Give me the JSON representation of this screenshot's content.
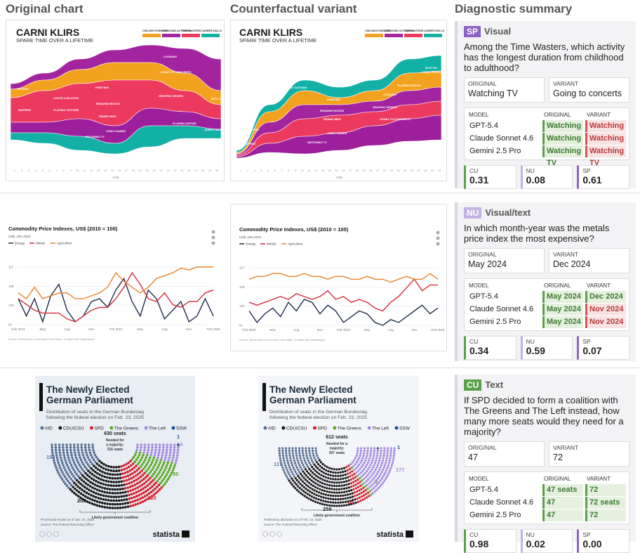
{
  "headers": [
    "Original chart",
    "Counterfactual variant",
    "Diagnostic summary"
  ],
  "rows": [
    {
      "original": {
        "type": "stream",
        "title": "CARNI KLIRS",
        "subtitle": "SPARE TIME OVER A LIFETIME",
        "legend": [
          "CHILDISH PURSUITS",
          "ENRICHING ACTIVITIES",
          "TIME WASTERS",
          "CAREER SKILLS"
        ],
        "labels": [
          "EXTRAS",
          "NAPPING",
          "LEGOS & BLOCKS",
          "PLAYING OUTSIDE",
          "PAINTING",
          "READING BOOKS",
          "RIDING BIKE",
          "VIDEO GAMES",
          "WATCHING TV",
          "COOKING",
          "GOING TO CONCERTS",
          "GRAPHIC DESIGN",
          "PLAYING GUITAR",
          "AUDIO PRODUCTION",
          "INTO VIZ"
        ],
        "xticks": [
          1,
          2,
          3,
          4,
          5,
          6,
          7,
          8,
          9,
          10,
          11,
          12,
          13,
          14,
          15,
          16,
          17,
          18,
          19,
          20,
          21,
          22,
          23,
          24,
          25,
          26,
          27,
          28,
          29,
          30
        ],
        "xlabel": "AGE"
      },
      "variant": {
        "type": "stream",
        "title": "CARNI KLIRS",
        "subtitle": "SPARE TIME OVER A LIFETIME",
        "legend": [
          "CHILDISH PURSUITS",
          "ENRICHING ACTIVITIES",
          "TIME WASTERS",
          "CAREER SKILLS"
        ],
        "labels": [
          "EXTRAS",
          "NAPPING",
          "LEGOS & BLOCKS",
          "PLAYING OUTSIDE",
          "PAINTING",
          "READING BOOKS",
          "RIDING BIKE",
          "VIDEO GAMES",
          "WATCHING TV",
          "COOKING",
          "GOING TO CONCERTS",
          "GRAPHIC DESIGN",
          "PLAYING GUITAR",
          "AUDIO PRODUCTION",
          "INTO VIZ"
        ],
        "xticks": [
          1,
          2,
          3,
          4,
          5,
          6,
          7,
          8,
          9,
          10,
          11,
          12,
          13,
          14,
          15,
          16,
          17,
          18,
          19,
          20,
          21,
          22,
          23,
          24,
          25,
          26,
          27,
          28,
          29,
          30
        ],
        "xlabel": "AGE"
      },
      "summary": {
        "badge": "SP",
        "kind": "Visual",
        "question": "Among the Time Wasters, which activity has the longest duration from childhood to adulthood?",
        "answers": [
          {
            "label": "ORIGINAL",
            "text": "Watching TV"
          },
          {
            "label": "VARIANT",
            "text": "Going to concerts"
          }
        ],
        "table": {
          "header": [
            "MODEL",
            "ORIGINAL",
            "VARIANT"
          ],
          "rows": [
            [
              "GPT-5.4",
              "Watching TV",
              "Watching TV"
            ],
            [
              "Claude Sonnet 4.6",
              "Watching TV",
              "Watching TV"
            ],
            [
              "Gemini 2.5 Pro",
              "Watching TV",
              "Watching TV"
            ]
          ],
          "correct": [
            [
              true,
              false
            ],
            [
              true,
              false
            ],
            [
              true,
              false
            ]
          ]
        },
        "metrics": [
          {
            "name": "CU",
            "value": "0.31"
          },
          {
            "name": "NU",
            "value": "0.08"
          },
          {
            "name": "SP",
            "value": "0.61"
          }
        ]
      }
    },
    {
      "original": {
        "type": "line",
        "title": "Commodity Price Indexes, US$ (2010 = 100)",
        "subtitle": "US$, 100=2010",
        "legend": [
          "Energy",
          "Metals",
          "Agriculture"
        ],
        "yticks": [
          "117",
          "108",
          "100",
          "91"
        ],
        "xticks": [
          "Feb 2023",
          "May",
          "Aug",
          "Nov",
          "Feb 2024",
          "May",
          "Aug",
          "Nov",
          "Feb 2025"
        ],
        "source": "Source: World Bank (Commodity Price Data) • Created with Datawrapper"
      },
      "variant": {
        "type": "line",
        "title": "Commodity Price Indexes, US$ (2010 = 100)",
        "subtitle": "US$, 100=2010",
        "legend": [
          "Energy",
          "Metals",
          "Agriculture"
        ],
        "yticks": [
          "117",
          "108",
          "100",
          "91"
        ],
        "xticks": [
          "Feb 2023",
          "May",
          "Aug",
          "Nov",
          "Feb 2024",
          "May",
          "Aug",
          "Nov",
          "Feb 2025"
        ],
        "source": "Source: World Bank (Commodity Price Data) • Created with Datawrapper"
      },
      "summary": {
        "badge": "NU",
        "kind": "Visual/text",
        "question": "In which month-year was the metals price index the most expensive?",
        "answers": [
          {
            "label": "ORIGINAL",
            "text": "May 2024"
          },
          {
            "label": "VARIANT",
            "text": "Dec 2024"
          }
        ],
        "table": {
          "header": [
            "MODEL",
            "ORIGINAL",
            "VARIANT"
          ],
          "rows": [
            [
              "GPT-5.4",
              "May 2024",
              "Dec 2024"
            ],
            [
              "Claude Sonnet 4.6",
              "May 2024",
              "Nov 2024"
            ],
            [
              "Gemini 2.5 Pro",
              "May 2024",
              "Nov 2024"
            ]
          ],
          "correct": [
            [
              true,
              true
            ],
            [
              true,
              false
            ],
            [
              true,
              false
            ]
          ]
        },
        "metrics": [
          {
            "name": "CU",
            "value": "0.34"
          },
          {
            "name": "NU",
            "value": "0.59"
          },
          {
            "name": "SP",
            "value": "0.07"
          }
        ]
      }
    },
    {
      "original": {
        "type": "parliament",
        "title": [
          "The Newly Elected",
          "German Parliament"
        ],
        "subtitle": [
          "Distribution of seats in the German Bundestag",
          "following the federal election on Feb. 23, 2025"
        ],
        "parties": [
          {
            "name": "AfD",
            "count": 152,
            "color": "#5a7196"
          },
          {
            "name": "CDU/CSU",
            "count": 208,
            "color": "#1a1a1a"
          },
          {
            "name": "SPD",
            "count": 120,
            "color": "#d4202c"
          },
          {
            "name": "The Greens",
            "count": 85,
            "color": "#5fa82a"
          },
          {
            "name": "The Left",
            "count": 64,
            "color": "#a58ce0"
          },
          {
            "name": "SSW",
            "count": 1,
            "color": "#1d4e9a"
          }
        ],
        "total_label": "630 seats",
        "majority": [
          "Needed for",
          "a majority:",
          "316 seats"
        ],
        "coalition": "Likely government coalition",
        "notes": [
          "Provisional results as of Jan. 24, 2025",
          "Source: The Federal Returning Officer"
        ],
        "logo": "statista"
      },
      "variant": {
        "type": "parliament",
        "title": [
          "The Newly Elected",
          "German Parliament"
        ],
        "subtitle": [
          "Distribution of seats in the German Bundestag",
          "following the federal election on Feb. 23, 2025"
        ],
        "parties": [
          {
            "name": "AfD",
            "count": 117,
            "color": "#5a7196"
          },
          {
            "name": "CDU/CSU",
            "count": 259,
            "color": "#1a1a1a"
          },
          {
            "name": "SPD",
            "count": 49,
            "color": "#d4202c"
          },
          {
            "name": "The Greens",
            "count": 9,
            "color": "#5fa82a"
          },
          {
            "name": "The Left",
            "count": 177,
            "color": "#a58ce0"
          },
          {
            "name": "SSW",
            "count": 1,
            "color": "#1d4e9a"
          }
        ],
        "total_label": "612 seats",
        "majority": [
          "Needed for a",
          "majority:",
          "307 seats"
        ],
        "coalition": "Likely government coalition",
        "notes": [
          "Preliminary allocation as of Feb. 16, 2026",
          "Source: The Federal Returning Officer"
        ],
        "logo": "statista"
      },
      "summary": {
        "badge": "CU",
        "kind": "Text",
        "question": "If SPD decided to form a coalition with The Greens and The Left instead, how many more seats would they need for a majority?",
        "answers": [
          {
            "label": "ORIGINAL",
            "text": "47"
          },
          {
            "label": "VARIANT",
            "text": "72"
          }
        ],
        "table": {
          "header": [
            "MODEL",
            "ORIGINAL",
            "VARIANT"
          ],
          "rows": [
            [
              "GPT-5.4",
              "47 seats",
              "72"
            ],
            [
              "Claude Sonnet 4.6",
              "47",
              "72 seats"
            ],
            [
              "Gemini 2.5 Pro",
              "47",
              "72"
            ]
          ],
          "correct": [
            [
              true,
              true
            ],
            [
              true,
              true
            ],
            [
              true,
              true
            ]
          ]
        },
        "metrics": [
          {
            "name": "CU",
            "value": "0.98"
          },
          {
            "name": "NU",
            "value": "0.02"
          },
          {
            "name": "SP",
            "value": "0.00"
          }
        ]
      }
    }
  ]
}
